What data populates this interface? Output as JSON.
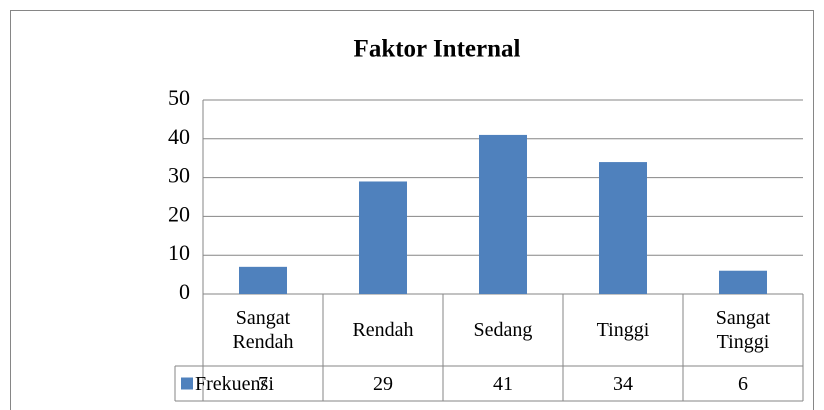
{
  "chart_data": {
    "type": "bar",
    "title": "Faktor Internal",
    "categories": [
      "Sangat Rendah",
      "Rendah",
      "Sedang",
      "Tinggi",
      "Sangat Tinggi"
    ],
    "series": [
      {
        "name": "Frekuensi",
        "color": "#4f81bd",
        "values": [
          7,
          29,
          41,
          34,
          6
        ]
      }
    ],
    "ylim": [
      0,
      50
    ],
    "yticks": [
      0,
      10,
      20,
      30,
      40,
      50
    ],
    "grid": true,
    "data_table": true
  }
}
